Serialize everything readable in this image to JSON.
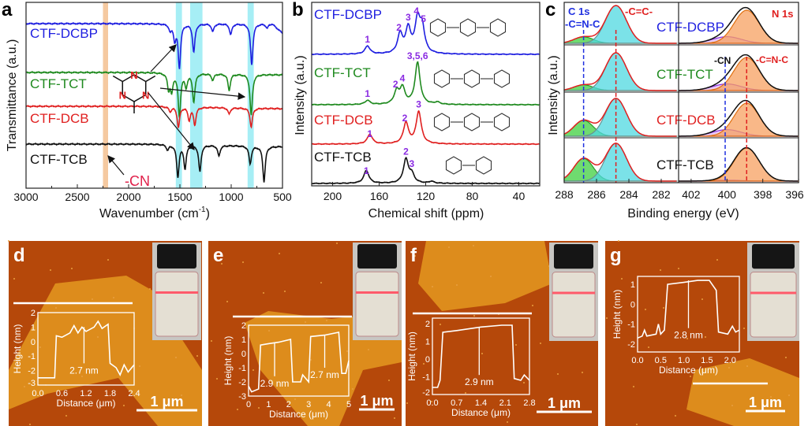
{
  "panel_letters": {
    "a": "a",
    "b": "b",
    "c": "c",
    "d": "d",
    "e": "e",
    "f": "f",
    "g": "g"
  },
  "colors": {
    "DCBP": "#1f1fe0",
    "TCT": "#1f8a1f",
    "DCB": "#e02020",
    "TCB": "#111111",
    "peak_label": "#8a2be2",
    "cn_band": "#f5c9a0",
    "triazine_band": "#a6eef5",
    "afm_dark": "#b5480a",
    "afm_light": "#dd8c1c"
  },
  "chart_data": [
    {
      "panel": "a",
      "type": "line",
      "xlabel": "Wavenumber (cm",
      "xlabel_sup": "-1",
      "xlabel_end": ")",
      "ylabel": "Transmittance (a.u.)",
      "xlim": [
        3000,
        500
      ],
      "xticks": [
        "3000",
        "2500",
        "2000",
        "1500",
        "1000",
        "500"
      ],
      "highlight_bands": [
        [
          2250,
          2200
        ],
        [
          1540,
          1480
        ],
        [
          1400,
          1280
        ],
        [
          840,
          780
        ]
      ],
      "annotation_cn": "-CN",
      "series": [
        {
          "name": "CTF-DCBP",
          "peaks": [
            [
              1595,
              0.15
            ],
            [
              1550,
              0.35
            ],
            [
              1505,
              1.0
            ],
            [
              1365,
              0.65
            ],
            [
              1180,
              0.18
            ],
            [
              1005,
              0.25
            ],
            [
              800,
              0.95
            ],
            [
              650,
              0.1
            ]
          ]
        },
        {
          "name": "CTF-TCT",
          "peaks": [
            [
              1610,
              0.35
            ],
            [
              1580,
              0.4
            ],
            [
              1505,
              1.0
            ],
            [
              1440,
              0.3
            ],
            [
              1365,
              0.65
            ],
            [
              1180,
              0.15
            ],
            [
              1020,
              0.38
            ],
            [
              805,
              0.95
            ]
          ]
        },
        {
          "name": "CTF-DCB",
          "peaks": [
            [
              1595,
              0.15
            ],
            [
              1515,
              0.65
            ],
            [
              1410,
              0.4
            ],
            [
              1355,
              0.55
            ],
            [
              1020,
              0.2
            ],
            [
              805,
              0.6
            ]
          ]
        },
        {
          "name": "CTF-TCB",
          "peaks": [
            [
              1620,
              0.15
            ],
            [
              1520,
              0.9
            ],
            [
              1450,
              0.65
            ],
            [
              1305,
              0.75
            ],
            [
              1120,
              0.3
            ],
            [
              815,
              0.5
            ],
            [
              680,
              1.0
            ]
          ]
        }
      ]
    },
    {
      "panel": "b",
      "type": "line",
      "xlabel": "Chemical shift (ppm)",
      "ylabel": "Intensity (a.u.)",
      "xlim": [
        218,
        22
      ],
      "xticks": [
        "200",
        "160",
        "120",
        "80",
        "40"
      ],
      "series": [
        {
          "name": "CTF-DCBP",
          "peaks": [
            [
              170,
              0.25
            ],
            [
              142,
              0.6
            ],
            [
              135,
              0.75
            ],
            [
              127,
              1.0
            ],
            [
              123,
              0.75
            ]
          ],
          "labels": [
            [
              170,
              "1"
            ],
            [
              143,
              "2"
            ],
            [
              135,
              "3"
            ],
            [
              128,
              "4"
            ],
            [
              122,
              "5"
            ]
          ]
        },
        {
          "name": "CTF-TCT",
          "peaks": [
            [
              170,
              0.1
            ],
            [
              145,
              0.3
            ],
            [
              140,
              0.38
            ],
            [
              127,
              1.0
            ],
            [
              110,
              0.05
            ]
          ],
          "labels": [
            [
              170,
              "1"
            ],
            [
              146,
              "2"
            ],
            [
              140,
              "4"
            ],
            [
              127,
              "3,5,6"
            ]
          ]
        },
        {
          "name": "CTF-DCB",
          "peaks": [
            [
              168,
              0.3
            ],
            [
              137,
              0.65
            ],
            [
              126,
              1.0
            ]
          ],
          "labels": [
            [
              168,
              "1"
            ],
            [
              138,
              "2"
            ],
            [
              126,
              "3"
            ]
          ]
        },
        {
          "name": "CTF-TCB",
          "peaks": [
            [
              171,
              0.55
            ],
            [
              137,
              1.0
            ],
            [
              132,
              0.35
            ],
            [
              115,
              0.08
            ]
          ],
          "labels": [
            [
              171,
              "1"
            ],
            [
              137,
              "2"
            ],
            [
              132,
              "3"
            ]
          ]
        }
      ]
    },
    {
      "panel": "c",
      "type": "area",
      "xlabel": "Binding energy (eV)",
      "ylabel": "Intensity (a.u.)",
      "c1s": {
        "title": "C 1s",
        "xlim": [
          288,
          281
        ],
        "xticks": [
          "288",
          "286",
          "284",
          "282"
        ],
        "label_cnc": "-C=N-C",
        "label_cc": "-C=C-",
        "cnc_position": 286.8,
        "cc_position": 284.8
      },
      "n1s": {
        "title": "N 1s",
        "xlim": [
          402.7,
          396
        ],
        "xticks": [
          "402",
          "400",
          "398",
          "396"
        ],
        "label_cn": "-CN",
        "label_cnc": "-C=N-C",
        "cn_position": 400.1,
        "cnc_position": 398.9
      },
      "series": [
        {
          "name": "CTF-DCBP",
          "c_main": 1.0,
          "c_cnc": 0.17,
          "n_main": 1.0,
          "n_cn": 0.2
        },
        {
          "name": "CTF-TCT",
          "c_main": 1.0,
          "c_cnc": 0.15,
          "n_main": 1.0,
          "n_cn": 0.2
        },
        {
          "name": "CTF-DCB",
          "c_main": 1.0,
          "c_cnc": 0.42,
          "n_main": 1.0,
          "n_cn": 0.2
        },
        {
          "name": "CTF-TCB",
          "c_main": 1.0,
          "c_cnc": 0.6,
          "n_main": 1.0,
          "n_cn": 0.03
        }
      ]
    },
    {
      "panel": "d",
      "type": "line",
      "xlabel": "Distance (μm)",
      "ylabel": "Height (nm)",
      "xlim": [
        0,
        2.4
      ],
      "ylim": [
        -3,
        2
      ],
      "xticks": [
        "0.0",
        "0.6",
        "1.2",
        "1.8",
        "2.4"
      ],
      "yticks": [
        "2",
        "1",
        "0",
        "-1",
        "-2",
        "-3"
      ],
      "annotations": [
        "2.7 nm"
      ],
      "scale_bar": "1 μm",
      "profile": [
        [
          0,
          -2.5
        ],
        [
          0.42,
          -2.5
        ],
        [
          0.46,
          0.4
        ],
        [
          0.6,
          0.3
        ],
        [
          0.8,
          0.6
        ],
        [
          0.9,
          1.1
        ],
        [
          1.0,
          0.6
        ],
        [
          1.1,
          1.0
        ],
        [
          1.2,
          0.7
        ],
        [
          1.4,
          1.0
        ],
        [
          1.5,
          1.4
        ],
        [
          1.6,
          0.9
        ],
        [
          1.75,
          1.2
        ],
        [
          1.8,
          -1.5
        ],
        [
          1.95,
          -1.8
        ],
        [
          2.05,
          -2.3
        ],
        [
          2.15,
          -1.6
        ],
        [
          2.25,
          -2.1
        ],
        [
          2.4,
          -1.6
        ]
      ]
    },
    {
      "panel": "e",
      "type": "line",
      "xlabel": "Distance (μm)",
      "ylabel": "Height (nm)",
      "xlim": [
        0,
        5
      ],
      "ylim": [
        -3,
        2
      ],
      "xticks": [
        "0",
        "1",
        "2",
        "3",
        "4",
        "5"
      ],
      "yticks": [
        "2",
        "1",
        "0",
        "-1",
        "-2",
        "-3"
      ],
      "annotations": [
        "2.9 nm",
        "2.7 nm"
      ],
      "scale_bar": "1 μm",
      "profile": [
        [
          0,
          -2.3
        ],
        [
          0.15,
          -2.7
        ],
        [
          0.5,
          -2.5
        ],
        [
          0.6,
          0.6
        ],
        [
          1.0,
          0.7
        ],
        [
          1.5,
          0.8
        ],
        [
          2.1,
          1.0
        ],
        [
          2.2,
          -2.0
        ],
        [
          2.6,
          -2.0
        ],
        [
          2.7,
          -1.5
        ],
        [
          3.0,
          -2.0
        ],
        [
          3.1,
          1.2
        ],
        [
          3.8,
          1.3
        ],
        [
          4.5,
          1.5
        ],
        [
          4.65,
          -1.4
        ],
        [
          4.85,
          -1.4
        ],
        [
          5,
          -0.5
        ]
      ]
    },
    {
      "panel": "f",
      "type": "line",
      "xlabel": "Distance (μm)",
      "ylabel": "Height (nm)",
      "xlim": [
        0,
        2.8
      ],
      "ylim": [
        -2,
        2.3
      ],
      "xticks": [
        "0.0",
        "0.7",
        "1.4",
        "2.1",
        "2.8"
      ],
      "yticks": [
        "2",
        "1",
        "0",
        "-1",
        "-2"
      ],
      "annotations": [
        "2.9 nm"
      ],
      "scale_bar": "1 μm",
      "profile": [
        [
          0,
          -1.6
        ],
        [
          0.15,
          -1.6
        ],
        [
          0.22,
          -1.2
        ],
        [
          0.3,
          1.5
        ],
        [
          0.7,
          1.6
        ],
        [
          1.4,
          1.8
        ],
        [
          2.0,
          1.9
        ],
        [
          2.3,
          1.9
        ],
        [
          2.36,
          -1.1
        ],
        [
          2.55,
          -1.2
        ],
        [
          2.65,
          -0.9
        ],
        [
          2.8,
          -1.2
        ]
      ]
    },
    {
      "panel": "g",
      "type": "line",
      "xlabel": "Distance (μm)",
      "ylabel": "Height (nm)",
      "xlim": [
        0,
        2.2
      ],
      "ylim": [
        -2.4,
        1.4
      ],
      "xticks": [
        "0.0",
        "0.5",
        "1.0",
        "1.5",
        "2.0"
      ],
      "yticks": [
        "1",
        "0",
        "-1",
        "-2"
      ],
      "annotations": [
        "2.8 nm"
      ],
      "scale_bar": "1 μm",
      "profile": [
        [
          0,
          -1.7
        ],
        [
          0.1,
          -1.6
        ],
        [
          0.15,
          -1.3
        ],
        [
          0.2,
          -1.6
        ],
        [
          0.4,
          -1.5
        ],
        [
          0.45,
          -1.0
        ],
        [
          0.5,
          -1.5
        ],
        [
          0.58,
          -1.3
        ],
        [
          0.65,
          1.0
        ],
        [
          1.0,
          1.1
        ],
        [
          1.3,
          1.2
        ],
        [
          1.55,
          1.2
        ],
        [
          1.7,
          0.7
        ],
        [
          1.75,
          -1.4
        ],
        [
          1.95,
          -1.5
        ],
        [
          2.05,
          -1.1
        ],
        [
          2.12,
          -1.4
        ],
        [
          2.2,
          -1.3
        ]
      ]
    }
  ]
}
